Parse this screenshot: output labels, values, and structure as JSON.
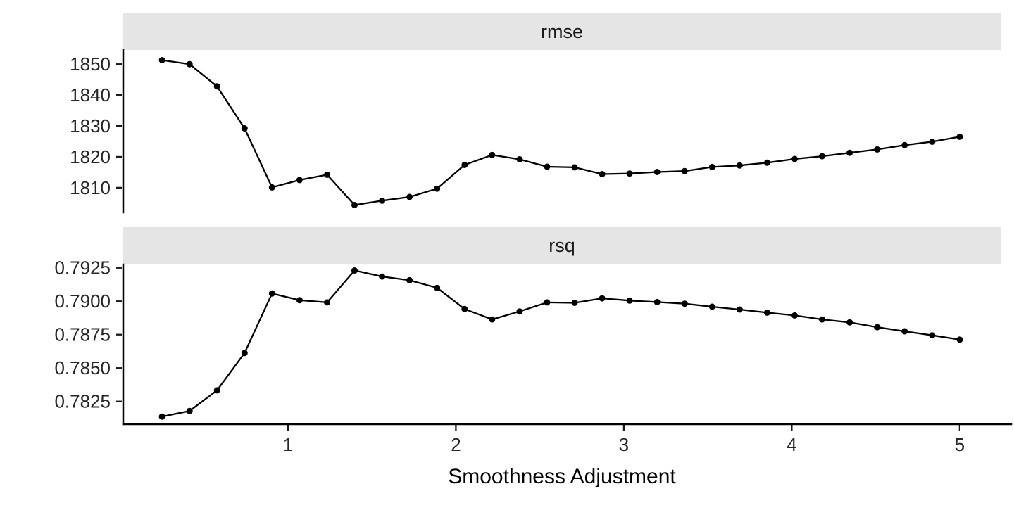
{
  "chart_data": {
    "type": "line",
    "facet_layout": "rows",
    "xlabel": "Smoothness Adjustment",
    "x_ticks": [
      1,
      2,
      3,
      4,
      5
    ],
    "x_tick_labels": [
      "1",
      "2",
      "3",
      "4",
      "5"
    ],
    "xlim": [
      0.019,
      5.248
    ],
    "grid": false,
    "legend": false,
    "x": [
      0.25,
      0.4138,
      0.5776,
      0.7414,
      0.9052,
      1.069,
      1.2328,
      1.3966,
      1.5603,
      1.7241,
      1.8879,
      2.0517,
      2.2155,
      2.3793,
      2.5431,
      2.7069,
      2.8707,
      3.0345,
      3.1983,
      3.3621,
      3.5259,
      3.6897,
      3.8534,
      4.0172,
      4.181,
      4.3448,
      4.5086,
      4.6724,
      4.8362,
      5.0
    ],
    "panels": [
      {
        "title": "rmse",
        "values": [
          1851.3,
          1850.0,
          1842.8,
          1829.2,
          1810.1,
          1812.5,
          1814.2,
          1804.4,
          1805.8,
          1807.0,
          1809.7,
          1817.4,
          1820.6,
          1819.2,
          1816.8,
          1816.6,
          1814.4,
          1814.6,
          1815.1,
          1815.4,
          1816.7,
          1817.2,
          1818.1,
          1819.3,
          1820.2,
          1821.3,
          1822.4,
          1823.8,
          1824.9,
          1826.5
        ],
        "y_ticks": [
          1850,
          1840,
          1830,
          1820,
          1810
        ],
        "y_tick_labels": [
          "1850",
          "1840",
          "1830",
          "1820",
          "1810"
        ],
        "ylim": [
          1802.0,
          1854.6
        ]
      },
      {
        "title": "rsq",
        "values": [
          0.78137,
          0.78179,
          0.78333,
          0.78613,
          0.79058,
          0.79008,
          0.78991,
          0.7923,
          0.79185,
          0.79157,
          0.791,
          0.78942,
          0.78864,
          0.78924,
          0.78991,
          0.78988,
          0.79022,
          0.79005,
          0.78994,
          0.78982,
          0.78959,
          0.78938,
          0.78915,
          0.78894,
          0.78864,
          0.78842,
          0.78806,
          0.78775,
          0.78745,
          0.78713
        ],
        "y_ticks": [
          0.7925,
          0.79,
          0.7875,
          0.785,
          0.7825
        ],
        "y_tick_labels": [
          "0.7925",
          "0.7900",
          "0.7875",
          "0.7850",
          "0.7825"
        ],
        "ylim": [
          0.7808,
          0.79275
        ]
      }
    ],
    "colors": {
      "strip_fill": "#E5E5E5",
      "line": "#000000",
      "point": "#000000",
      "axis": "#000000",
      "tick_text": "#262626",
      "background": "#FFFFFF"
    }
  }
}
